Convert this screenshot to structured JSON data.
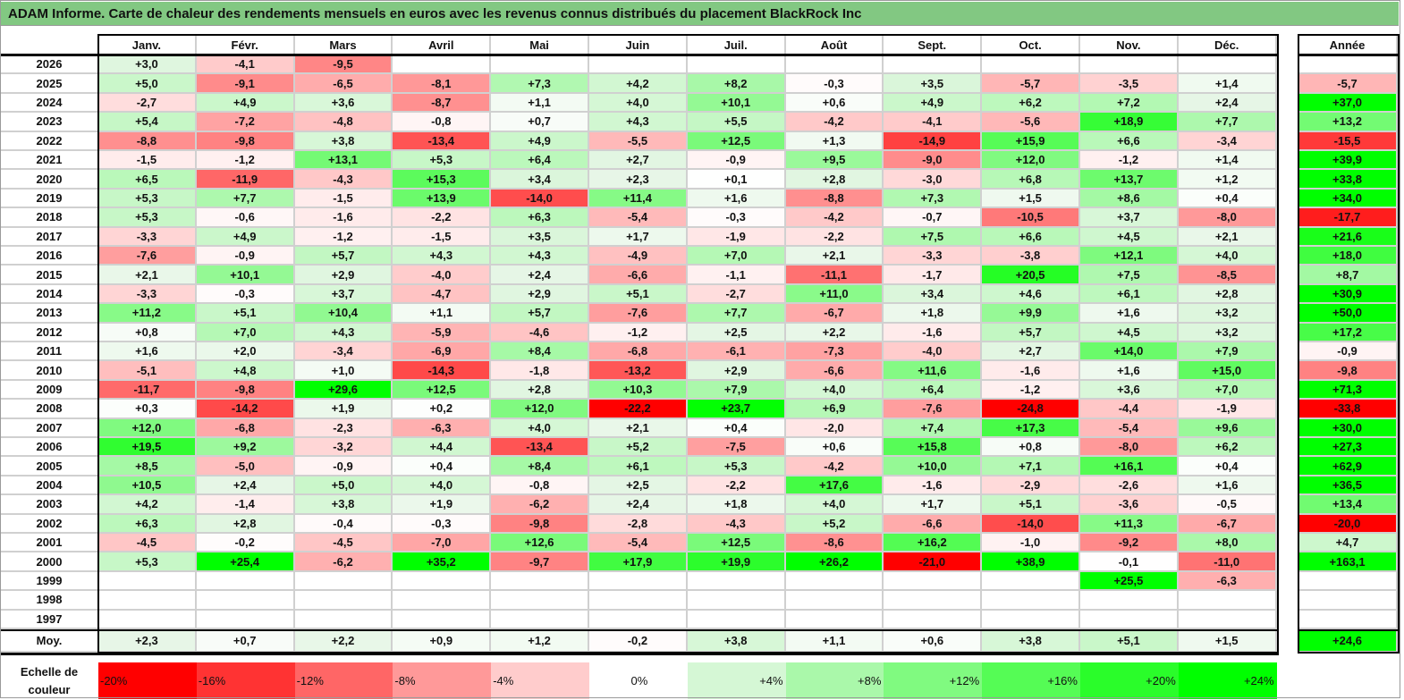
{
  "title": "ADAM Informe. Carte de chaleur des rendements mensuels en euros avec les revenus connus distribués du placement BlackRock Inc",
  "chart_data": {
    "type": "heatmap",
    "title": "ADAM Informe. Carte de chaleur des rendements mensuels en euros avec les revenus connus distribués du placement BlackRock Inc",
    "columns": [
      "Janv.",
      "Févr.",
      "Mars",
      "Avril",
      "Mai",
      "Juin",
      "Juil.",
      "Août",
      "Sept.",
      "Oct.",
      "Nov.",
      "Déc."
    ],
    "annual_header": "Année",
    "colors": {
      "negative_max": "#ff0000",
      "positive_max": "#00ff00",
      "neutral": "#ffffff"
    },
    "rows": [
      {
        "year": "2026",
        "values": [
          "+3,0",
          "-4,1",
          "-9,5",
          "",
          "",
          "",
          "",
          "",
          "",
          "",
          "",
          ""
        ],
        "annual": ""
      },
      {
        "year": "2025",
        "values": [
          "+5,0",
          "-9,1",
          "-6,5",
          "-8,1",
          "+7,3",
          "+4,2",
          "+8,2",
          "-0,3",
          "+3,5",
          "-5,7",
          "-3,5",
          "+1,4"
        ],
        "annual": "-5,7"
      },
      {
        "year": "2024",
        "values": [
          "-2,7",
          "+4,9",
          "+3,6",
          "-8,7",
          "+1,1",
          "+4,0",
          "+10,1",
          "+0,6",
          "+4,9",
          "+6,2",
          "+7,2",
          "+2,4"
        ],
        "annual": "+37,0"
      },
      {
        "year": "2023",
        "values": [
          "+5,4",
          "-7,2",
          "-4,8",
          "-0,8",
          "+0,7",
          "+4,3",
          "+5,5",
          "-4,2",
          "-4,1",
          "-5,6",
          "+18,9",
          "+7,7"
        ],
        "annual": "+13,2"
      },
      {
        "year": "2022",
        "values": [
          "-8,8",
          "-9,8",
          "+3,8",
          "-13,4",
          "+4,9",
          "-5,5",
          "+12,5",
          "+1,3",
          "-14,9",
          "+15,9",
          "+6,6",
          "-3,4"
        ],
        "annual": "-15,5"
      },
      {
        "year": "2021",
        "values": [
          "-1,5",
          "-1,2",
          "+13,1",
          "+5,3",
          "+6,4",
          "+2,7",
          "-0,9",
          "+9,5",
          "-9,0",
          "+12,0",
          "-1,2",
          "+1,4"
        ],
        "annual": "+39,9"
      },
      {
        "year": "2020",
        "values": [
          "+6,5",
          "-11,9",
          "-4,3",
          "+15,3",
          "+3,4",
          "+2,3",
          "+0,1",
          "+2,8",
          "-3,0",
          "+6,8",
          "+13,7",
          "+1,2"
        ],
        "annual": "+33,8"
      },
      {
        "year": "2019",
        "values": [
          "+5,3",
          "+7,7",
          "-1,5",
          "+13,9",
          "-14,0",
          "+11,4",
          "+1,6",
          "-8,8",
          "+7,3",
          "+1,5",
          "+8,6",
          "+0,4"
        ],
        "annual": "+34,0"
      },
      {
        "year": "2018",
        "values": [
          "+5,3",
          "-0,6",
          "-1,6",
          "-2,2",
          "+6,3",
          "-5,4",
          "-0,3",
          "-4,2",
          "-0,7",
          "-10,5",
          "+3,7",
          "-8,0"
        ],
        "annual": "-17,7"
      },
      {
        "year": "2017",
        "values": [
          "-3,3",
          "+4,9",
          "-1,2",
          "-1,5",
          "+3,5",
          "+1,7",
          "-1,9",
          "-2,2",
          "+7,5",
          "+6,6",
          "+4,5",
          "+2,1"
        ],
        "annual": "+21,6"
      },
      {
        "year": "2016",
        "values": [
          "-7,6",
          "-0,9",
          "+5,7",
          "+4,3",
          "+4,3",
          "-4,9",
          "+7,0",
          "+2,1",
          "-3,3",
          "-3,8",
          "+12,1",
          "+4,0"
        ],
        "annual": "+18,0"
      },
      {
        "year": "2015",
        "values": [
          "+2,1",
          "+10,1",
          "+2,9",
          "-4,0",
          "+2,4",
          "-6,6",
          "-1,1",
          "-11,1",
          "-1,7",
          "+20,5",
          "+7,5",
          "-8,5"
        ],
        "annual": "+8,7"
      },
      {
        "year": "2014",
        "values": [
          "-3,3",
          "-0,3",
          "+3,7",
          "-4,7",
          "+2,9",
          "+5,1",
          "-2,7",
          "+11,0",
          "+3,4",
          "+4,6",
          "+6,1",
          "+2,8"
        ],
        "annual": "+30,9"
      },
      {
        "year": "2013",
        "values": [
          "+11,2",
          "+5,1",
          "+10,4",
          "+1,1",
          "+5,7",
          "-7,6",
          "+7,7",
          "-6,7",
          "+1,8",
          "+9,9",
          "+1,6",
          "+3,2"
        ],
        "annual": "+50,0"
      },
      {
        "year": "2012",
        "values": [
          "+0,8",
          "+7,0",
          "+4,3",
          "-5,9",
          "-4,6",
          "-1,2",
          "+2,5",
          "+2,2",
          "-1,6",
          "+5,7",
          "+4,5",
          "+3,2"
        ],
        "annual": "+17,2"
      },
      {
        "year": "2011",
        "values": [
          "+1,6",
          "+2,0",
          "-3,4",
          "-6,9",
          "+8,4",
          "-6,8",
          "-6,1",
          "-7,3",
          "-4,0",
          "+2,7",
          "+14,0",
          "+7,9"
        ],
        "annual": "-0,9"
      },
      {
        "year": "2010",
        "values": [
          "-5,1",
          "+4,8",
          "+1,0",
          "-14,3",
          "-1,8",
          "-13,2",
          "+2,9",
          "-6,6",
          "+11,6",
          "-1,6",
          "+1,6",
          "+15,0"
        ],
        "annual": "-9,8"
      },
      {
        "year": "2009",
        "values": [
          "-11,7",
          "-9,8",
          "+29,6",
          "+12,5",
          "+2,8",
          "+10,3",
          "+7,9",
          "+4,0",
          "+6,4",
          "-1,2",
          "+3,6",
          "+7,0"
        ],
        "annual": "+71,3"
      },
      {
        "year": "2008",
        "values": [
          "+0,3",
          "-14,2",
          "+1,9",
          "+0,2",
          "+12,0",
          "-22,2",
          "+23,7",
          "+6,9",
          "-7,6",
          "-24,8",
          "-4,4",
          "-1,9"
        ],
        "annual": "-33,8"
      },
      {
        "year": "2007",
        "values": [
          "+12,0",
          "-6,8",
          "-2,3",
          "-6,3",
          "+4,0",
          "+2,1",
          "+0,4",
          "-2,0",
          "+7,4",
          "+17,3",
          "-5,4",
          "+9,6"
        ],
        "annual": "+30,0"
      },
      {
        "year": "2006",
        "values": [
          "+19,5",
          "+9,2",
          "-3,2",
          "+4,4",
          "-13,4",
          "+5,2",
          "-7,5",
          "+0,6",
          "+15,8",
          "+0,8",
          "-8,0",
          "+6,2"
        ],
        "annual": "+27,3"
      },
      {
        "year": "2005",
        "values": [
          "+8,5",
          "-5,0",
          "-0,9",
          "+0,4",
          "+8,4",
          "+6,1",
          "+5,3",
          "-4,2",
          "+10,0",
          "+7,1",
          "+16,1",
          "+0,4"
        ],
        "annual": "+62,9"
      },
      {
        "year": "2004",
        "values": [
          "+10,5",
          "+2,4",
          "+5,0",
          "+4,0",
          "-0,8",
          "+2,5",
          "-2,2",
          "+17,6",
          "-1,6",
          "-2,9",
          "-2,6",
          "+1,6"
        ],
        "annual": "+36,5"
      },
      {
        "year": "2003",
        "values": [
          "+4,2",
          "-1,4",
          "+3,8",
          "+1,9",
          "-6,2",
          "+2,4",
          "+1,8",
          "+4,0",
          "+1,7",
          "+5,1",
          "-3,6",
          "-0,5"
        ],
        "annual": "+13,4"
      },
      {
        "year": "2002",
        "values": [
          "+6,3",
          "+2,8",
          "-0,4",
          "-0,3",
          "-9,8",
          "-2,8",
          "-4,3",
          "+5,2",
          "-6,6",
          "-14,0",
          "+11,3",
          "-6,7"
        ],
        "annual": "-20,0"
      },
      {
        "year": "2001",
        "values": [
          "-4,5",
          "-0,2",
          "-4,5",
          "-7,0",
          "+12,6",
          "-5,4",
          "+12,5",
          "-8,6",
          "+16,2",
          "-1,0",
          "-9,2",
          "+8,0"
        ],
        "annual": "+4,7"
      },
      {
        "year": "2000",
        "values": [
          "+5,3",
          "+25,4",
          "-6,2",
          "+35,2",
          "-9,7",
          "+17,9",
          "+19,9",
          "+26,2",
          "-21,0",
          "+38,9",
          "-0,1",
          "-11,0"
        ],
        "annual": "+163,1"
      },
      {
        "year": "1999",
        "values": [
          "",
          "",
          "",
          "",
          "",
          "",
          "",
          "",
          "",
          "",
          "+25,5",
          "-6,3"
        ],
        "annual": ""
      },
      {
        "year": "1998",
        "values": [
          "",
          "",
          "",
          "",
          "",
          "",
          "",
          "",
          "",
          "",
          "",
          ""
        ],
        "annual": ""
      },
      {
        "year": "1997",
        "values": [
          "",
          "",
          "",
          "",
          "",
          "",
          "",
          "",
          "",
          "",
          "",
          ""
        ],
        "annual": ""
      }
    ],
    "average": {
      "label": "Moy.",
      "values": [
        "+2,3",
        "+0,7",
        "+2,2",
        "+0,9",
        "+1,2",
        "-0,2",
        "+3,8",
        "+1,1",
        "+0,6",
        "+3,8",
        "+5,1",
        "+1,5"
      ],
      "annual": "+24,6"
    },
    "scale": {
      "label": "Echelle de couleur",
      "steps": [
        {
          "label": "-20%",
          "value": -20
        },
        {
          "label": "-16%",
          "value": -16
        },
        {
          "label": "-12%",
          "value": -12
        },
        {
          "label": "-8%",
          "value": -8
        },
        {
          "label": "-4%",
          "value": -4
        },
        {
          "label": "0%",
          "value": 0
        },
        {
          "label": "+4%",
          "value": 4
        },
        {
          "label": "+8%",
          "value": 8
        },
        {
          "label": "+12%",
          "value": 12
        },
        {
          "label": "+16%",
          "value": 16
        },
        {
          "label": "+20%",
          "value": 20
        },
        {
          "label": "+24%",
          "value": 24
        }
      ]
    }
  }
}
